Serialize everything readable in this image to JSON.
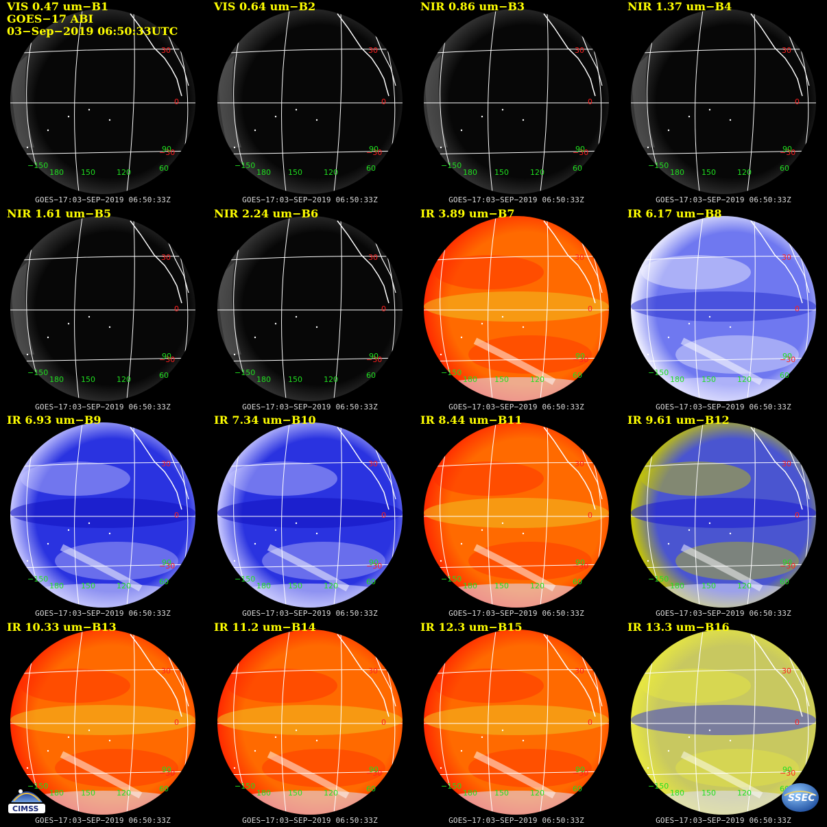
{
  "header": {
    "satellite": "GOES−17 ABI",
    "timestamp": "03−Sep−2019 06:50:33UTC"
  },
  "footer_label": "GOES−17:03−SEP−2019  06:50:33Z",
  "grid_labels": {
    "lat": [
      "30",
      "0",
      "−30"
    ],
    "lon": [
      "−150",
      "180",
      "150",
      "120",
      "60",
      "90"
    ]
  },
  "panels": [
    {
      "title": "VIS 0.47 um−B1",
      "style": "dark"
    },
    {
      "title": "VIS 0.64 um−B2",
      "style": "dark"
    },
    {
      "title": "NIR 0.86 um−B3",
      "style": "dark"
    },
    {
      "title": "NIR 1.37 um−B4",
      "style": "dark"
    },
    {
      "title": "NIR 1.61 um−B5",
      "style": "dark"
    },
    {
      "title": "NIR 2.24 um−B6",
      "style": "dark"
    },
    {
      "title": "IR 3.89 um−B7",
      "style": "warm"
    },
    {
      "title": "IR 6.17 um−B8",
      "style": "wvpale"
    },
    {
      "title": "IR 6.93 um−B9",
      "style": "wv"
    },
    {
      "title": "IR 7.34 um−B10",
      "style": "wv"
    },
    {
      "title": "IR 8.44 um−B11",
      "style": "warm"
    },
    {
      "title": "IR 9.61 um−B12",
      "style": "ozone"
    },
    {
      "title": "IR 10.33 um−B13",
      "style": "warm"
    },
    {
      "title": "IR 11.2 um−B14",
      "style": "warm"
    },
    {
      "title": "IR 12.3 um−B15",
      "style": "warm"
    },
    {
      "title": "IR 13.3 um−B16",
      "style": "co2"
    }
  ],
  "logos": {
    "cimss": "CIMSS",
    "ssec": "SSEC"
  },
  "colors": {
    "title": "#ffff00",
    "footer": "#dcdcdc",
    "lat_label": "#ff2020",
    "lon_label": "#20e020",
    "gridline": "#ffffff"
  }
}
